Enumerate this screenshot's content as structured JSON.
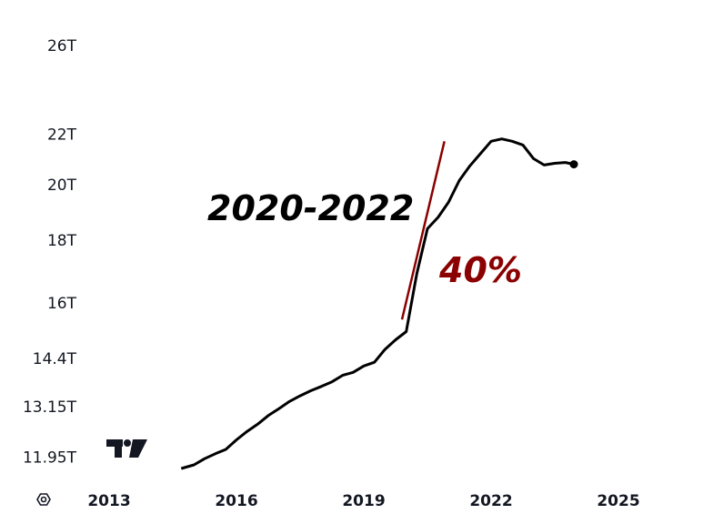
{
  "chart_data": {
    "type": "line",
    "scale": "log",
    "y_ticks": [
      "26T",
      "22T",
      "20T",
      "18T",
      "16T",
      "14.4T",
      "13.15T",
      "11.95T"
    ],
    "x_ticks": [
      "2013",
      "2016",
      "2019",
      "2022",
      "2025"
    ],
    "ylim": [
      11.6,
      26.5
    ],
    "xlim": [
      2013,
      2026.5
    ],
    "series": [
      {
        "color": "#000000",
        "x": [
          2014.7,
          2015.0,
          2015.25,
          2015.5,
          2015.75,
          2016.0,
          2016.25,
          2016.5,
          2016.75,
          2017.0,
          2017.25,
          2017.5,
          2017.75,
          2018.0,
          2018.25,
          2018.5,
          2018.75,
          2019.0,
          2019.25,
          2019.5,
          2019.75,
          2020.0,
          2020.25,
          2020.5,
          2020.75,
          2021.0,
          2021.25,
          2021.5,
          2021.75,
          2022.0,
          2022.25,
          2022.5,
          2022.75,
          2023.0,
          2023.25,
          2023.5,
          2023.75,
          2023.95
        ],
        "values": [
          11.7,
          11.78,
          11.92,
          12.03,
          12.13,
          12.35,
          12.55,
          12.72,
          12.93,
          13.1,
          13.28,
          13.42,
          13.55,
          13.66,
          13.78,
          13.95,
          14.03,
          14.2,
          14.3,
          14.65,
          14.92,
          15.15,
          16.9,
          18.4,
          18.8,
          19.35,
          20.15,
          20.72,
          21.2,
          21.7,
          21.8,
          21.7,
          21.55,
          21.0,
          20.75,
          20.82,
          20.85,
          20.78
        ]
      }
    ],
    "annotations": [
      {
        "text": "2020-2022",
        "color": "#000000"
      },
      {
        "text": "40%",
        "color": "#8b0000"
      }
    ],
    "trend_line": {
      "color": "#8b0000",
      "x": [
        2019.9,
        2020.9
      ],
      "values": [
        15.5,
        21.7
      ]
    }
  }
}
